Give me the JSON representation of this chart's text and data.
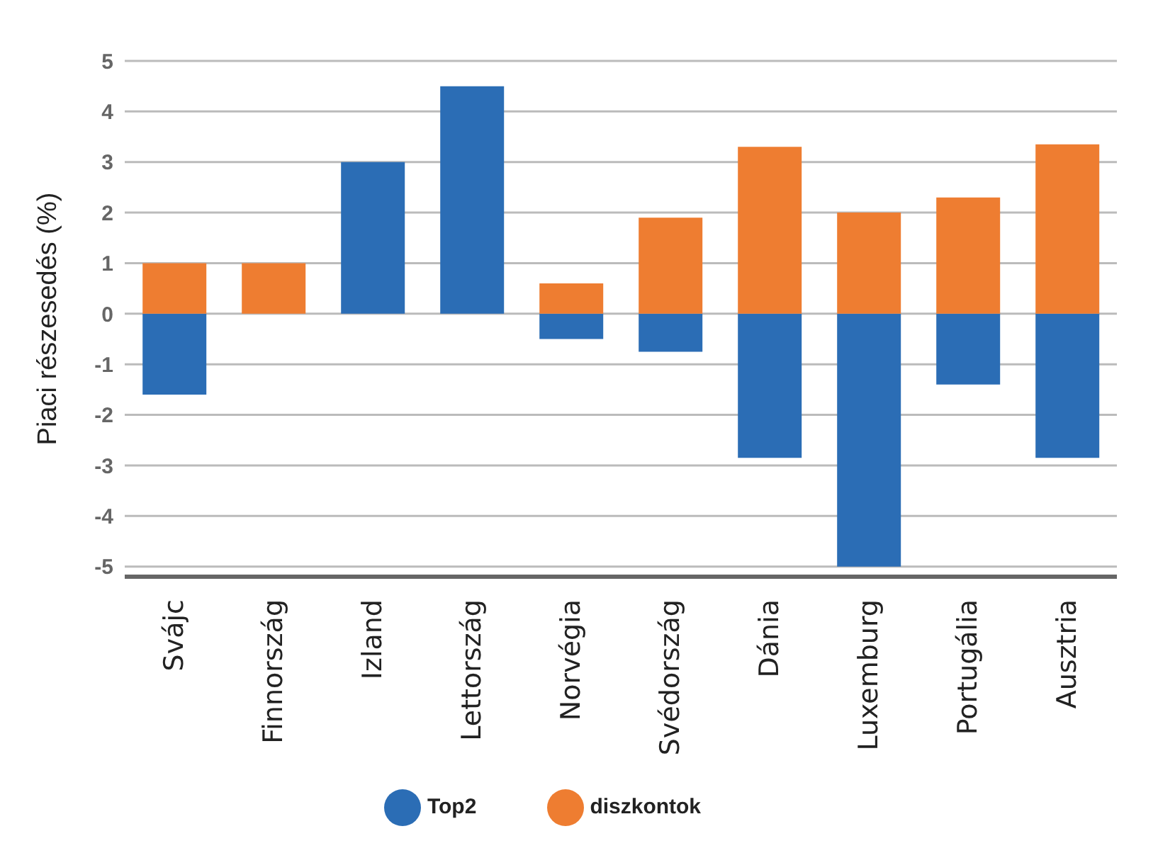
{
  "chart_data": {
    "type": "bar",
    "ylabel": "Piaci részesedés (%)",
    "stacked": true,
    "categories": [
      "Svájc",
      "Finnország",
      "Izland",
      "Lettország",
      "Norvégia",
      "Svédország",
      "Dánia",
      "Luxemburg",
      "Portugália",
      "Ausztria"
    ],
    "series": [
      {
        "name": "Top2",
        "color": "#2b6db5",
        "values": [
          -1.6,
          null,
          3.0,
          4.5,
          -0.5,
          -0.75,
          -2.85,
          -5.0,
          -1.4,
          -2.85
        ]
      },
      {
        "name": "diszkontok",
        "color": "#ee7d31",
        "values": [
          1.0,
          1.0,
          null,
          null,
          0.6,
          1.9,
          3.3,
          2.0,
          2.3,
          3.35
        ]
      }
    ],
    "ylim": [
      -5.2,
      5
    ],
    "yticks": [
      -5,
      -4,
      -3,
      -2,
      -1,
      0,
      1,
      2,
      3,
      4,
      5
    ],
    "grid": "y",
    "legend": "bottom"
  }
}
